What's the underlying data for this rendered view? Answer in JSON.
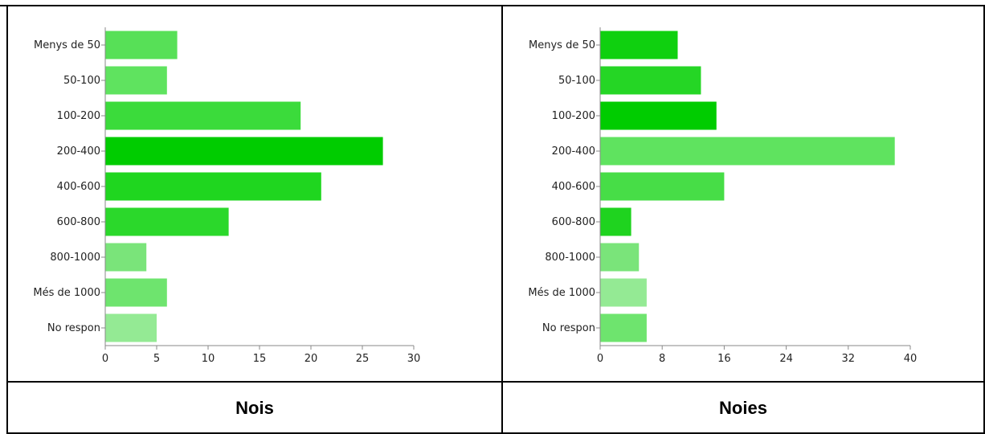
{
  "captions": {
    "left": "Nois",
    "right": "Noies"
  },
  "chart_data": [
    {
      "type": "bar",
      "orientation": "horizontal",
      "categories": [
        "Menys de 50",
        "50-100",
        "100-200",
        "200-400",
        "400-600",
        "600-800",
        "800-1000",
        "Més de 1000",
        "No respon"
      ],
      "category_labels": [
        "Menys de 50",
        "50-100",
        "100-200",
        "200-400",
        "400-600",
        "600-800",
        "800-1000",
        "Més de 1000",
        "No respon"
      ],
      "values": [
        7,
        6,
        19,
        27,
        21,
        12,
        4,
        6,
        5
      ],
      "colors": [
        "#57e057",
        "#5fe35f",
        "#3bdb3b",
        "#00cc00",
        "#1fd61f",
        "#2bd82b",
        "#7ae47a",
        "#6ee46e",
        "#94ea94"
      ],
      "xlim": [
        0,
        30
      ],
      "xticks": [
        "0",
        "5",
        "10",
        "15",
        "20",
        "25",
        "30"
      ],
      "title": "",
      "xlabel": "",
      "ylabel": "",
      "grid": false
    },
    {
      "type": "bar",
      "orientation": "horizontal",
      "categories": [
        "Menys de 50",
        "50-100",
        "100-200",
        "200-400",
        "400-600",
        "600-800",
        "800-1000",
        "Més de 1000",
        "No respon"
      ],
      "category_labels": [
        "Menys de 50",
        "50-100",
        "100-200",
        "200-400",
        "400-600",
        "600-800",
        "800-1000",
        "Més de 1000",
        "No respon"
      ],
      "values": [
        10,
        13,
        15,
        38,
        16,
        4,
        5,
        6,
        6
      ],
      "colors": [
        "#0fd00f",
        "#25d625",
        "#00cc00",
        "#5fe35f",
        "#47dd47",
        "#1fd31f",
        "#7ae47a",
        "#94ea94",
        "#6ee46e"
      ],
      "xlim": [
        0,
        40
      ],
      "xticks": [
        "0",
        "8",
        "16",
        "24",
        "32",
        "40"
      ],
      "title": "",
      "xlabel": "",
      "ylabel": "",
      "grid": false
    }
  ]
}
